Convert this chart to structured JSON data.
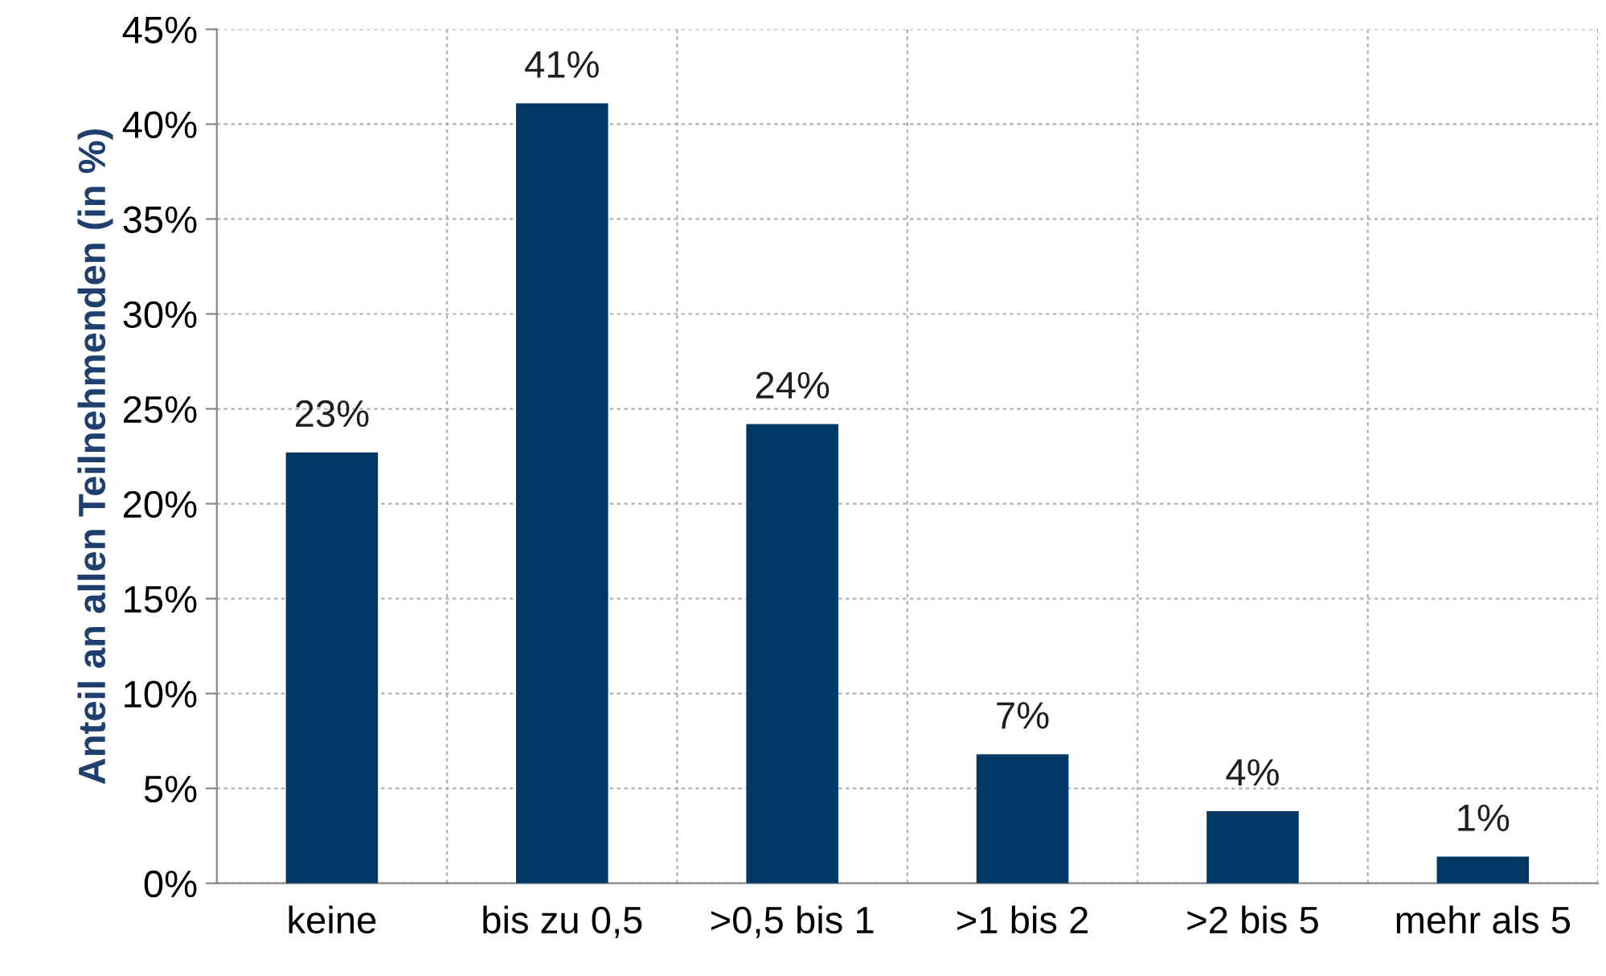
{
  "chart_data": {
    "type": "bar",
    "ylabel": "Anteil an allen Teilnehmenden (in %)",
    "categories": [
      "keine",
      "bis zu 0,5",
      ">0,5 bis 1",
      ">1 bis 2",
      ">2 bis 5",
      "mehr als 5"
    ],
    "values": [
      22.7,
      41.1,
      24.2,
      6.8,
      3.8,
      1.4
    ],
    "value_labels": [
      "23%",
      "41%",
      "24%",
      "7%",
      "4%",
      "1%"
    ],
    "color": "#003865",
    "ylim": [
      0,
      45
    ],
    "yticks": [
      {
        "value": 0,
        "label": "0%"
      },
      {
        "value": 5,
        "label": "5%"
      },
      {
        "value": 10,
        "label": "10%"
      },
      {
        "value": 15,
        "label": "15%"
      },
      {
        "value": 20,
        "label": "20%"
      },
      {
        "value": 25,
        "label": "25%"
      },
      {
        "value": 30,
        "label": "30%"
      },
      {
        "value": 35,
        "label": "35%"
      },
      {
        "value": 40,
        "label": "40%"
      },
      {
        "value": 45,
        "label": "45%"
      }
    ],
    "grid": true
  }
}
